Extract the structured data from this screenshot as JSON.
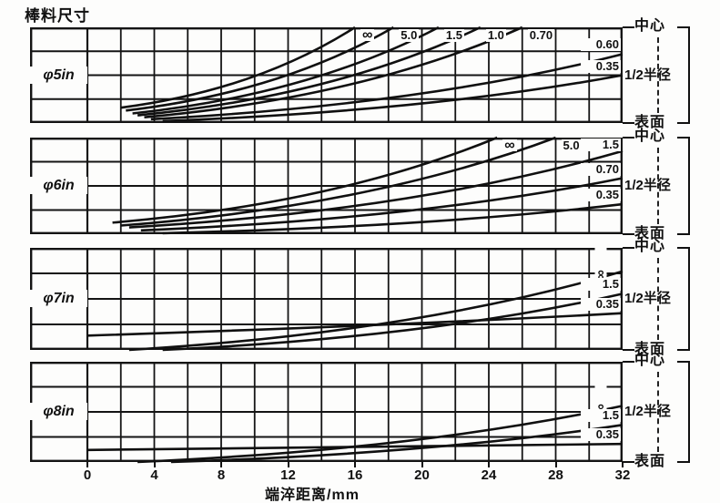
{
  "title": "棒料尺寸",
  "x_axis": {
    "label": "端淬距离/mm",
    "tick_values": [
      0,
      4,
      8,
      12,
      16,
      20,
      24,
      28,
      32
    ]
  },
  "right_labels": {
    "center": "中心",
    "half_radius": "1/2半径",
    "surface": "表面"
  },
  "chart_data": {
    "type": "line",
    "title": "棒料尺寸",
    "xlabel": "端淬距离/mm",
    "x_range": [
      0,
      32
    ],
    "x_ticks": [
      0,
      4,
      8,
      12,
      16,
      20,
      24,
      28,
      32
    ],
    "y_axis_note": "bar cross-section position: 表面(0) -> 1/2半径(0.5) -> 中心(1)",
    "grid": "on, vertical every 2 mm, 4 horizontal rows per panel",
    "legend_note": "curve labels are quench severity H values",
    "panels": [
      {
        "bar_size": "φ5in",
        "series": [
          {
            "label": "∞",
            "from": [
              2.0,
              0.16
            ],
            "to": [
              16.0,
              1.0
            ],
            "label_side": "top"
          },
          {
            "label": "5.0",
            "from": [
              2.3,
              0.13
            ],
            "to": [
              18.3,
              1.0
            ],
            "label_side": "top"
          },
          {
            "label": "1.5",
            "from": [
              2.7,
              0.1
            ],
            "to": [
              21.0,
              1.0
            ],
            "label_side": "top"
          },
          {
            "label": "1.0",
            "from": [
              3.0,
              0.08
            ],
            "to": [
              23.5,
              1.0
            ],
            "label_side": "top"
          },
          {
            "label": "0.70",
            "from": [
              3.4,
              0.06
            ],
            "to": [
              26.0,
              1.0
            ],
            "label_side": "top"
          },
          {
            "label": "0.60",
            "from": [
              3.8,
              0.04
            ],
            "to": [
              32.0,
              0.72
            ],
            "label_side": "right"
          },
          {
            "label": "0.35",
            "from": [
              4.5,
              0.02
            ],
            "to": [
              32.0,
              0.5
            ],
            "label_side": "right"
          }
        ]
      },
      {
        "bar_size": "φ6in",
        "series": [
          {
            "label": "∞",
            "from": [
              1.5,
              0.12
            ],
            "to": [
              24.5,
              1.0
            ],
            "label_side": "top"
          },
          {
            "label": "5.0",
            "from": [
              2.0,
              0.09
            ],
            "to": [
              28.0,
              1.0
            ],
            "label_side": "top"
          },
          {
            "label": "1.5",
            "from": [
              2.5,
              0.07
            ],
            "to": [
              32.0,
              0.86
            ],
            "label_side": "right"
          },
          {
            "label": "0.70",
            "from": [
              3.2,
              0.04
            ],
            "to": [
              32.0,
              0.58
            ],
            "label_side": "right"
          },
          {
            "label": "0.35",
            "from": [
              4.5,
              0.01
            ],
            "to": [
              32.0,
              0.31
            ],
            "label_side": "right"
          }
        ]
      },
      {
        "bar_size": "φ7in",
        "series": [
          {
            "label": "∞",
            "from": [
              2.5,
              0.0
            ],
            "to": [
              32.0,
              0.77
            ],
            "label_side": "right",
            "label_rotate": 90
          },
          {
            "label": "1.5",
            "from": [
              4.5,
              0.0
            ],
            "to": [
              32.0,
              0.55
            ],
            "label_side": "right"
          },
          {
            "label": "0.35",
            "from": [
              0.0,
              0.14
            ],
            "to": [
              32.0,
              0.36
            ],
            "label_side": "right",
            "bend": 0.45
          }
        ]
      },
      {
        "bar_size": "φ8in",
        "series": [
          {
            "label": "∞",
            "from": [
              3.0,
              0.0
            ],
            "to": [
              32.0,
              0.56
            ],
            "label_side": "right",
            "label_rotate": 90
          },
          {
            "label": "1.5",
            "from": [
              5.0,
              0.0
            ],
            "to": [
              32.0,
              0.37
            ],
            "label_side": "right"
          },
          {
            "label": "0.35",
            "from": [
              0.0,
              0.12
            ],
            "to": [
              32.0,
              0.18
            ],
            "label_side": "right",
            "bend": 0.45
          }
        ]
      }
    ]
  }
}
